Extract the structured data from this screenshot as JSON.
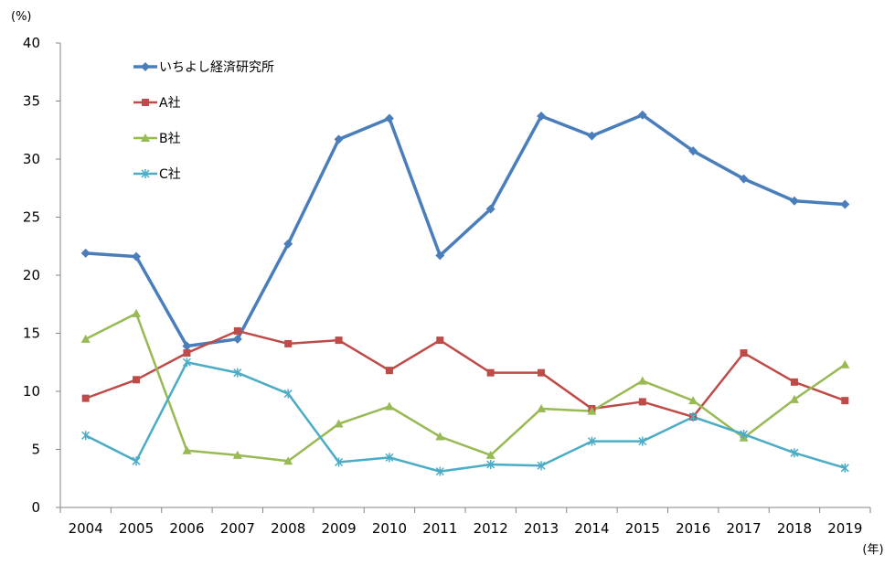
{
  "chart_data": {
    "type": "line",
    "y_unit": "(%)",
    "x_unit": "(年)",
    "ylim": [
      0,
      40
    ],
    "yticks": [
      0,
      5,
      10,
      15,
      20,
      25,
      30,
      35,
      40
    ],
    "grid": false,
    "legend_position": "top-left",
    "x": [
      "2004",
      "2005",
      "2006",
      "2007",
      "2008",
      "2009",
      "2010",
      "2011",
      "2012",
      "2013",
      "2014",
      "2015",
      "2016",
      "2017",
      "2018",
      "2019"
    ],
    "series": [
      {
        "name": "いちよし経済研究所",
        "color": "#4a7ebb",
        "marker": "diamond",
        "values": [
          21.9,
          21.6,
          13.9,
          14.5,
          22.7,
          31.7,
          33.5,
          21.7,
          25.7,
          33.7,
          32.0,
          33.8,
          30.7,
          28.3,
          26.4,
          26.1
        ]
      },
      {
        "name": "A社",
        "color": "#be4b48",
        "marker": "square",
        "values": [
          9.4,
          11.0,
          13.3,
          15.2,
          14.1,
          14.4,
          11.8,
          14.4,
          11.6,
          11.6,
          8.5,
          9.1,
          7.8,
          13.3,
          10.8,
          9.2
        ]
      },
      {
        "name": "B社",
        "color": "#98b954",
        "marker": "triangle",
        "values": [
          14.5,
          16.7,
          4.9,
          4.5,
          4.0,
          7.2,
          8.7,
          6.1,
          4.5,
          8.5,
          8.3,
          10.9,
          9.2,
          6.0,
          9.3,
          12.3
        ]
      },
      {
        "name": "C社",
        "color": "#4bacc6",
        "marker": "star",
        "values": [
          6.2,
          4.0,
          12.5,
          11.6,
          9.8,
          3.9,
          4.3,
          3.1,
          3.7,
          3.6,
          5.7,
          5.7,
          7.8,
          6.3,
          4.7,
          3.4
        ]
      }
    ]
  }
}
